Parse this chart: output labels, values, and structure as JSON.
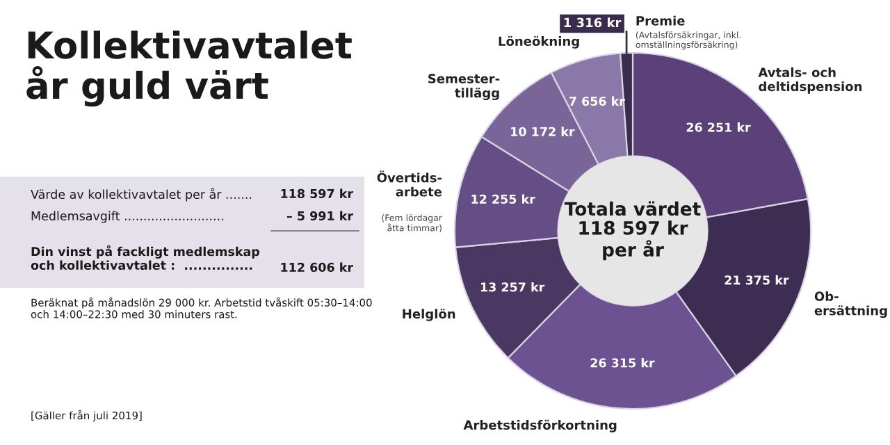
{
  "chart_data": {
    "type": "donut",
    "title": "Kollektivavtalet\når guld värt",
    "categories": [
      "Avtals- och\ndeltidspension",
      "Ob-\nersättning",
      "Arbetstidsförkortning",
      "Helglön",
      "Övertids-\narbete",
      "Semester-\ntillägg",
      "Löneökning",
      "Premie"
    ],
    "values": [
      26251,
      21375,
      26315,
      13257,
      12255,
      10172,
      7656,
      1316
    ],
    "value_labels": [
      "26 251 kr",
      "21 375 kr",
      "26 315 kr",
      "13 257 kr",
      "12 255 kr",
      "10 172 kr",
      "7 656 kr",
      "1 316 kr"
    ],
    "colors": [
      "#5b4079",
      "#3e2d52",
      "#6d5291",
      "#4a3862",
      "#654d85",
      "#7a6598",
      "#8a78a8",
      "#3a2c4c"
    ],
    "annotations": [
      "Totala värdet\n118 597 kr\nper år",
      "Värde av kollektivavtalet per år .......",
      "118 597 kr",
      "Medlemsavgift ..........................",
      "– 5 991 kr",
      "Din vinst på fackligt medlemskap\noch kollektivavtalet :  ...............",
      "112 606 kr",
      "Beräknat på månadslön 29 000 kr. Arbetstid tvåskift 05:30–14:00\noch 14:00–22:30 med 30 minuters rast.",
      "[Gäller från juli 2019]",
      "(Avtalsförsäkringar, inkl.\nomställningsförsäkring)",
      "(Fem lördagar\nåtta timmar)"
    ]
  }
}
